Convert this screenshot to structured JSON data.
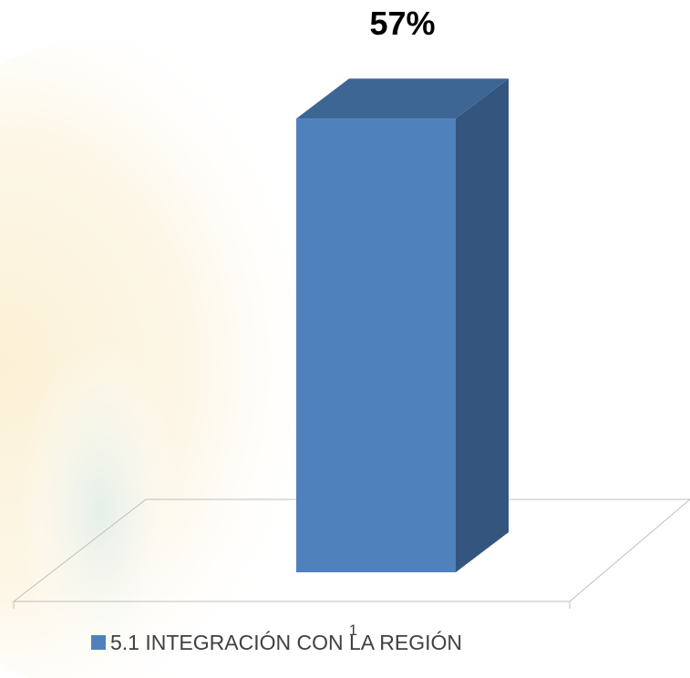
{
  "chart_data": {
    "type": "bar3d",
    "categories": [
      "1"
    ],
    "series": [
      {
        "name": "5.1 INTEGRACIÓN CON LA REGIÓN",
        "color": "#4f81bd",
        "values": [
          57
        ],
        "value_labels": [
          "57%"
        ]
      }
    ],
    "ylim": [
      0,
      60
    ]
  }
}
